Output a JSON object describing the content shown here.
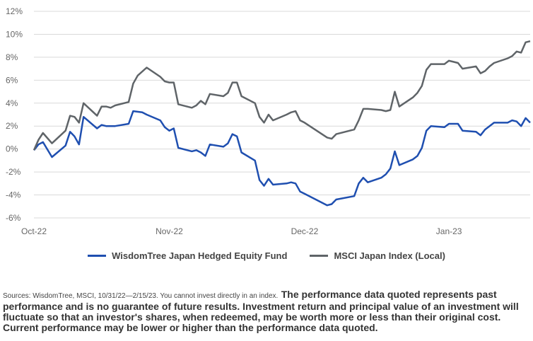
{
  "chart_data": {
    "type": "line",
    "xlabel": "",
    "ylabel": "",
    "ylim": [
      -6,
      12
    ],
    "y_ticks": [
      "12%",
      "10%",
      "8%",
      "6%",
      "4%",
      "2%",
      "0%",
      "-2%",
      "-4%",
      "-6%"
    ],
    "y_tick_values": [
      12,
      10,
      8,
      6,
      4,
      2,
      0,
      -2,
      -4,
      -6
    ],
    "x_ticks": [
      {
        "label": "Oct-22",
        "date": "2022-10-31"
      },
      {
        "label": "Nov-22",
        "date": "2022-11-30"
      },
      {
        "label": "Dec-22",
        "date": "2022-12-30"
      },
      {
        "label": "Jan-23",
        "date": "2023-01-31"
      }
    ],
    "x_range": [
      "2022-10-31",
      "2023-02-15"
    ],
    "grid": "horizontal",
    "legend_position": "bottom",
    "series": [
      {
        "name": "WisdomTree Japan Hedged Equity Fund",
        "color": "#1f4fb0",
        "points": [
          [
            "2022-10-31",
            -0.1
          ],
          [
            "2022-11-01",
            0.4
          ],
          [
            "2022-11-02",
            0.6
          ],
          [
            "2022-11-04",
            -0.7
          ],
          [
            "2022-11-07",
            0.3
          ],
          [
            "2022-11-08",
            1.5
          ],
          [
            "2022-11-09",
            1.1
          ],
          [
            "2022-11-10",
            0.4
          ],
          [
            "2022-11-11",
            2.8
          ],
          [
            "2022-11-14",
            1.8
          ],
          [
            "2022-11-15",
            2.1
          ],
          [
            "2022-11-16",
            2.0
          ],
          [
            "2022-11-17",
            2.0
          ],
          [
            "2022-11-18",
            2.0
          ],
          [
            "2022-11-21",
            2.2
          ],
          [
            "2022-11-22",
            3.3
          ],
          [
            "2022-11-24",
            3.2
          ],
          [
            "2022-11-25",
            3.0
          ],
          [
            "2022-11-28",
            2.5
          ],
          [
            "2022-11-29",
            1.9
          ],
          [
            "2022-11-30",
            1.6
          ],
          [
            "2022-12-01",
            1.8
          ],
          [
            "2022-12-02",
            0.1
          ],
          [
            "2022-12-05",
            -0.2
          ],
          [
            "2022-12-06",
            -0.1
          ],
          [
            "2022-12-07",
            -0.3
          ],
          [
            "2022-12-08",
            -0.6
          ],
          [
            "2022-12-09",
            0.4
          ],
          [
            "2022-12-12",
            0.2
          ],
          [
            "2022-12-13",
            0.5
          ],
          [
            "2022-12-14",
            1.3
          ],
          [
            "2022-12-15",
            1.1
          ],
          [
            "2022-12-16",
            -0.3
          ],
          [
            "2022-12-19",
            -1.0
          ],
          [
            "2022-12-20",
            -2.7
          ],
          [
            "2022-12-21",
            -3.2
          ],
          [
            "2022-12-22",
            -2.6
          ],
          [
            "2022-12-23",
            -3.1
          ],
          [
            "2022-12-26",
            -3.0
          ],
          [
            "2022-12-27",
            -2.9
          ],
          [
            "2022-12-28",
            -3.0
          ],
          [
            "2022-12-29",
            -3.7
          ],
          [
            "2022-12-30",
            -3.9
          ],
          [
            "2023-01-04",
            -4.9
          ],
          [
            "2023-01-05",
            -4.8
          ],
          [
            "2023-01-06",
            -4.4
          ],
          [
            "2023-01-10",
            -4.1
          ],
          [
            "2023-01-11",
            -3.0
          ],
          [
            "2023-01-12",
            -2.5
          ],
          [
            "2023-01-13",
            -2.9
          ],
          [
            "2023-01-16",
            -2.5
          ],
          [
            "2023-01-17",
            -2.2
          ],
          [
            "2023-01-18",
            -1.7
          ],
          [
            "2023-01-19",
            -0.2
          ],
          [
            "2023-01-20",
            -1.4
          ],
          [
            "2023-01-23",
            -0.9
          ],
          [
            "2023-01-24",
            -0.6
          ],
          [
            "2023-01-25",
            0.1
          ],
          [
            "2023-01-26",
            1.6
          ],
          [
            "2023-01-27",
            2.0
          ],
          [
            "2023-01-30",
            1.9
          ],
          [
            "2023-01-31",
            2.2
          ],
          [
            "2023-02-01",
            2.2
          ],
          [
            "2023-02-02",
            2.2
          ],
          [
            "2023-02-03",
            1.6
          ],
          [
            "2023-02-06",
            1.5
          ],
          [
            "2023-02-07",
            1.2
          ],
          [
            "2023-02-08",
            1.7
          ],
          [
            "2023-02-09",
            2.0
          ],
          [
            "2023-02-10",
            2.3
          ],
          [
            "2023-02-13",
            2.3
          ],
          [
            "2023-02-14",
            2.5
          ],
          [
            "2023-02-15",
            2.4
          ],
          [
            "2023-02-16",
            2.0
          ],
          [
            "2023-02-17",
            2.7
          ],
          [
            "2023-02-18",
            2.3
          ]
        ]
      },
      {
        "name": "MSCI Japan Index (Local)",
        "color": "#5f6468",
        "points": [
          [
            "2022-10-31",
            -0.1
          ],
          [
            "2022-11-01",
            0.8
          ],
          [
            "2022-11-02",
            1.4
          ],
          [
            "2022-11-04",
            0.5
          ],
          [
            "2022-11-07",
            1.6
          ],
          [
            "2022-11-08",
            2.9
          ],
          [
            "2022-11-09",
            2.8
          ],
          [
            "2022-11-10",
            2.3
          ],
          [
            "2022-11-11",
            4.0
          ],
          [
            "2022-11-14",
            2.9
          ],
          [
            "2022-11-15",
            3.7
          ],
          [
            "2022-11-16",
            3.7
          ],
          [
            "2022-11-17",
            3.6
          ],
          [
            "2022-11-18",
            3.8
          ],
          [
            "2022-11-21",
            4.1
          ],
          [
            "2022-11-22",
            5.7
          ],
          [
            "2022-11-23",
            6.4
          ],
          [
            "2022-11-25",
            7.1
          ],
          [
            "2022-11-28",
            6.3
          ],
          [
            "2022-11-29",
            5.9
          ],
          [
            "2022-11-30",
            5.8
          ],
          [
            "2022-12-01",
            5.8
          ],
          [
            "2022-12-02",
            3.9
          ],
          [
            "2022-12-05",
            3.6
          ],
          [
            "2022-12-06",
            3.8
          ],
          [
            "2022-12-07",
            4.2
          ],
          [
            "2022-12-08",
            3.9
          ],
          [
            "2022-12-09",
            4.8
          ],
          [
            "2022-12-12",
            4.6
          ],
          [
            "2022-12-13",
            4.9
          ],
          [
            "2022-12-14",
            5.8
          ],
          [
            "2022-12-15",
            5.8
          ],
          [
            "2022-12-16",
            4.6
          ],
          [
            "2022-12-19",
            4.0
          ],
          [
            "2022-12-20",
            2.8
          ],
          [
            "2022-12-21",
            2.3
          ],
          [
            "2022-12-22",
            3.0
          ],
          [
            "2022-12-23",
            2.5
          ],
          [
            "2022-12-26",
            3.0
          ],
          [
            "2022-12-27",
            3.2
          ],
          [
            "2022-12-28",
            3.3
          ],
          [
            "2022-12-29",
            2.5
          ],
          [
            "2022-12-30",
            2.3
          ],
          [
            "2023-01-04",
            1.0
          ],
          [
            "2023-01-05",
            0.9
          ],
          [
            "2023-01-06",
            1.3
          ],
          [
            "2023-01-10",
            1.7
          ],
          [
            "2023-01-11",
            2.5
          ],
          [
            "2023-01-12",
            3.5
          ],
          [
            "2023-01-13",
            3.5
          ],
          [
            "2023-01-16",
            3.4
          ],
          [
            "2023-01-17",
            3.3
          ],
          [
            "2023-01-18",
            3.4
          ],
          [
            "2023-01-19",
            5.0
          ],
          [
            "2023-01-20",
            3.7
          ],
          [
            "2023-01-23",
            4.5
          ],
          [
            "2023-01-24",
            4.9
          ],
          [
            "2023-01-25",
            5.5
          ],
          [
            "2023-01-26",
            6.9
          ],
          [
            "2023-01-27",
            7.4
          ],
          [
            "2023-01-30",
            7.4
          ],
          [
            "2023-01-31",
            7.7
          ],
          [
            "2023-02-01",
            7.6
          ],
          [
            "2023-02-02",
            7.5
          ],
          [
            "2023-02-03",
            7.0
          ],
          [
            "2023-02-06",
            7.2
          ],
          [
            "2023-02-07",
            6.6
          ],
          [
            "2023-02-08",
            6.8
          ],
          [
            "2023-02-09",
            7.2
          ],
          [
            "2023-02-10",
            7.5
          ],
          [
            "2023-02-13",
            7.9
          ],
          [
            "2023-02-14",
            8.1
          ],
          [
            "2023-02-15",
            8.5
          ],
          [
            "2023-02-16",
            8.4
          ],
          [
            "2023-02-17",
            9.3
          ],
          [
            "2023-02-18",
            9.4
          ]
        ]
      }
    ]
  },
  "footnote": {
    "small": "Sources: WisdomTree, MSCI, 10/31/22—2/15/23. You cannot invest directly in an index.",
    "bold": "The performance data quoted represents past performance and is no guarantee of future results. Investment return and principal value of an investment will fluctuate so that an investor's shares, when redeemed, may be worth more or less than their original cost. Current performance may be lower or higher than the performance data quoted."
  }
}
